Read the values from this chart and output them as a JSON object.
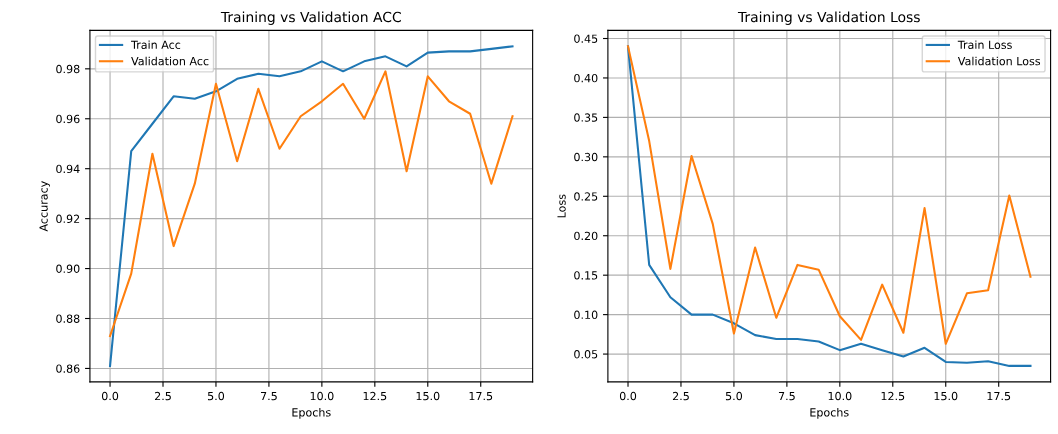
{
  "chart_data": [
    {
      "type": "line",
      "title": "Training vs Validation ACC",
      "xlabel": "Epochs",
      "ylabel": "Accuracy",
      "x": [
        0,
        1,
        2,
        3,
        4,
        5,
        6,
        7,
        8,
        9,
        10,
        11,
        12,
        13,
        14,
        15,
        16,
        17,
        18,
        19
      ],
      "series": [
        {
          "name": "Train Acc",
          "color": "#1f77b4",
          "values": [
            0.861,
            0.947,
            0.958,
            0.969,
            0.968,
            0.971,
            0.976,
            0.978,
            0.977,
            0.979,
            0.983,
            0.979,
            0.983,
            0.985,
            0.981,
            0.9865,
            0.987,
            0.987,
            0.988,
            0.989
          ]
        },
        {
          "name": "Validation Acc",
          "color": "#ff7f0e",
          "values": [
            0.873,
            0.898,
            0.946,
            0.909,
            0.934,
            0.974,
            0.943,
            0.972,
            0.948,
            0.961,
            0.967,
            0.974,
            0.96,
            0.979,
            0.939,
            0.977,
            0.967,
            0.962,
            0.934,
            0.961
          ]
        }
      ],
      "xlim": [
        -0.95,
        19.95
      ],
      "xticks": [
        {
          "value": 0,
          "label": "0.0"
        },
        {
          "value": 2.5,
          "label": "2.5"
        },
        {
          "value": 5,
          "label": "5.0"
        },
        {
          "value": 7.5,
          "label": "7.5"
        },
        {
          "value": 10,
          "label": "10.0"
        },
        {
          "value": 12.5,
          "label": "12.5"
        },
        {
          "value": 15,
          "label": "15.0"
        },
        {
          "value": 17.5,
          "label": "17.5"
        }
      ],
      "ylim": [
        0.8546,
        0.9954
      ],
      "yticks": [
        {
          "value": 0.86,
          "label": "0.86"
        },
        {
          "value": 0.88,
          "label": "0.88"
        },
        {
          "value": 0.9,
          "label": "0.90"
        },
        {
          "value": 0.92,
          "label": "0.92"
        },
        {
          "value": 0.94,
          "label": "0.94"
        },
        {
          "value": 0.96,
          "label": "0.96"
        },
        {
          "value": 0.98,
          "label": "0.98"
        }
      ],
      "grid": true,
      "legend": "top left"
    },
    {
      "type": "line",
      "title": "Training vs Validation Loss",
      "xlabel": "Epochs",
      "ylabel": "Loss",
      "x": [
        0,
        1,
        2,
        3,
        4,
        5,
        6,
        7,
        8,
        9,
        10,
        11,
        12,
        13,
        14,
        15,
        16,
        17,
        18,
        19
      ],
      "series": [
        {
          "name": "Train Loss",
          "color": "#1f77b4",
          "values": [
            0.44,
            0.163,
            0.122,
            0.1,
            0.1,
            0.089,
            0.074,
            0.069,
            0.069,
            0.066,
            0.055,
            0.063,
            0.055,
            0.047,
            0.058,
            0.04,
            0.039,
            0.041,
            0.035,
            0.035
          ]
        },
        {
          "name": "Validation Loss",
          "color": "#ff7f0e",
          "values": [
            0.44,
            0.32,
            0.158,
            0.301,
            0.215,
            0.076,
            0.185,
            0.096,
            0.163,
            0.157,
            0.098,
            0.068,
            0.138,
            0.077,
            0.235,
            0.063,
            0.127,
            0.131,
            0.251,
            0.148
          ]
        }
      ],
      "xlim": [
        -0.95,
        19.95
      ],
      "xticks": [
        {
          "value": 0,
          "label": "0.0"
        },
        {
          "value": 2.5,
          "label": "2.5"
        },
        {
          "value": 5,
          "label": "5.0"
        },
        {
          "value": 7.5,
          "label": "7.5"
        },
        {
          "value": 10,
          "label": "10.0"
        },
        {
          "value": 12.5,
          "label": "12.5"
        },
        {
          "value": 15,
          "label": "15.0"
        },
        {
          "value": 17.5,
          "label": "17.5"
        }
      ],
      "ylim": [
        0.0147,
        0.4603
      ],
      "yticks": [
        {
          "value": 0.05,
          "label": "0.05"
        },
        {
          "value": 0.1,
          "label": "0.10"
        },
        {
          "value": 0.15,
          "label": "0.15"
        },
        {
          "value": 0.2,
          "label": "0.20"
        },
        {
          "value": 0.25,
          "label": "0.25"
        },
        {
          "value": 0.3,
          "label": "0.30"
        },
        {
          "value": 0.35,
          "label": "0.35"
        },
        {
          "value": 0.4,
          "label": "0.40"
        },
        {
          "value": 0.45,
          "label": "0.45"
        }
      ],
      "grid": true,
      "legend": "top right"
    }
  ]
}
